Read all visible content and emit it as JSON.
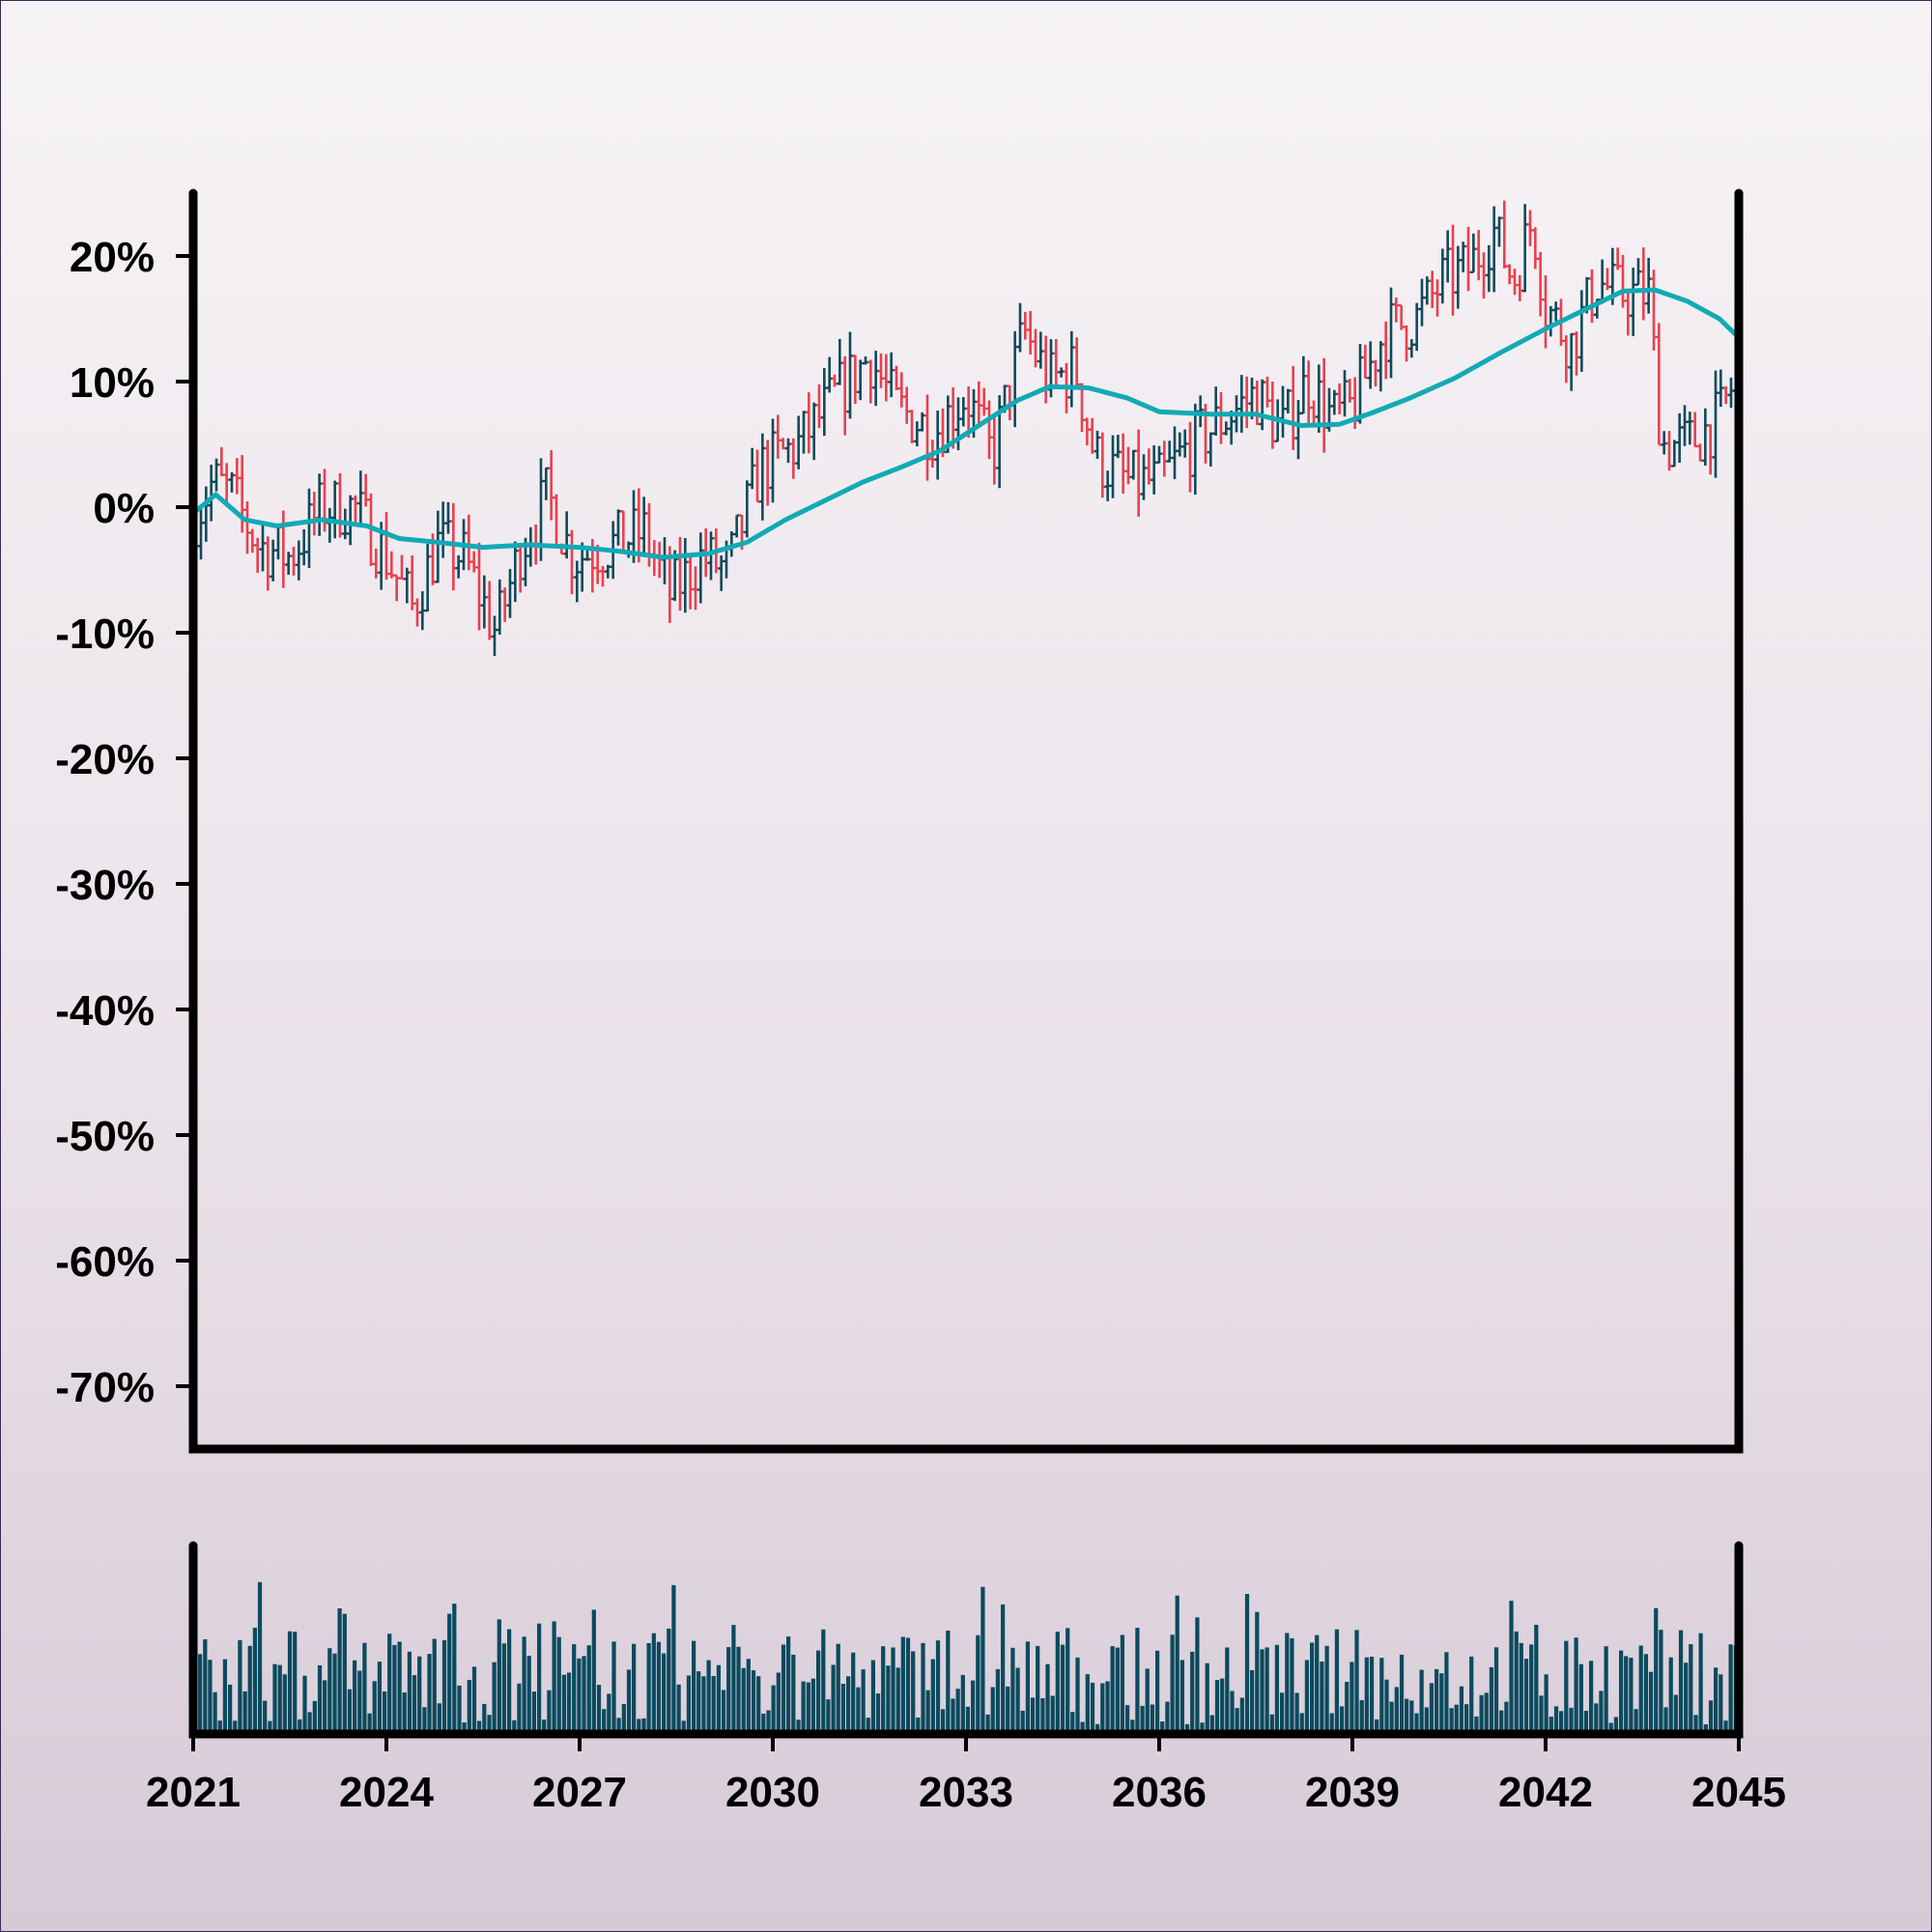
{
  "chart_data": {
    "type": "ohlc",
    "title": "",
    "xlabel": "",
    "ylabel": "",
    "x_range": [
      2021,
      2045
    ],
    "x_ticks": [
      "2021",
      "2024",
      "2027",
      "2030",
      "2033",
      "2036",
      "2039",
      "2042",
      "2045"
    ],
    "y_range": [
      -75,
      25
    ],
    "y_ticks": [
      20,
      10,
      0,
      -10,
      -20,
      -30,
      -40,
      -50,
      -60,
      -70
    ],
    "y_tick_labels": [
      "20%",
      "10%",
      "0%",
      "-10%",
      "-20%",
      "-30%",
      "-40%",
      "-50%",
      "-60%",
      "-70%"
    ],
    "grid": false,
    "legend": "none",
    "colors": {
      "up": "#0f4a5c",
      "down": "#e8404f",
      "moving_average": "#12aab5",
      "volume": "#0b4a5e",
      "axis": "#000000"
    },
    "price_anchors": [
      [
        2021.0,
        -1
      ],
      [
        2021.3,
        2
      ],
      [
        2021.6,
        1
      ],
      [
        2022.0,
        -3
      ],
      [
        2022.5,
        -4
      ],
      [
        2023.0,
        0
      ],
      [
        2023.5,
        0
      ],
      [
        2024.0,
        -4
      ],
      [
        2024.4,
        -8
      ],
      [
        2024.8,
        -3
      ],
      [
        2025.2,
        -4
      ],
      [
        2025.7,
        -10
      ],
      [
        2026.1,
        -3
      ],
      [
        2026.5,
        1
      ],
      [
        2026.9,
        -4
      ],
      [
        2027.5,
        -3
      ],
      [
        2028.0,
        -2
      ],
      [
        2028.4,
        -7
      ],
      [
        2028.9,
        -4
      ],
      [
        2029.3,
        -5
      ],
      [
        2029.8,
        3
      ],
      [
        2030.4,
        5
      ],
      [
        2031.0,
        9
      ],
      [
        2031.5,
        12
      ],
      [
        2031.9,
        8
      ],
      [
        2032.5,
        6
      ],
      [
        2033.0,
        9
      ],
      [
        2033.4,
        4
      ],
      [
        2033.9,
        14
      ],
      [
        2034.3,
        10
      ],
      [
        2034.7,
        11
      ],
      [
        2035.0,
        4
      ],
      [
        2035.5,
        2
      ],
      [
        2036.0,
        2
      ],
      [
        2036.5,
        5
      ],
      [
        2037.0,
        7
      ],
      [
        2037.5,
        9
      ],
      [
        2037.9,
        6
      ],
      [
        2038.3,
        10
      ],
      [
        2038.7,
        7
      ],
      [
        2039.0,
        8
      ],
      [
        2039.5,
        14
      ],
      [
        2040.0,
        15
      ],
      [
        2040.4,
        18
      ],
      [
        2040.8,
        19
      ],
      [
        2041.2,
        22
      ],
      [
        2041.5,
        18
      ],
      [
        2041.8,
        23
      ],
      [
        2042.0,
        16
      ],
      [
        2042.4,
        13
      ],
      [
        2042.8,
        18
      ],
      [
        2043.1,
        17
      ],
      [
        2043.6,
        17
      ],
      [
        2043.8,
        5
      ],
      [
        2044.2,
        5
      ],
      [
        2044.7,
        7
      ],
      [
        2045.0,
        11
      ]
    ],
    "moving_average": [
      [
        2021.0,
        -0.5
      ],
      [
        2021.35,
        1
      ],
      [
        2021.8,
        -1
      ],
      [
        2022.3,
        -1.5
      ],
      [
        2023.0,
        -1
      ],
      [
        2023.7,
        -1.5
      ],
      [
        2024.2,
        -2.5
      ],
      [
        2024.8,
        -2.8
      ],
      [
        2025.5,
        -3.2
      ],
      [
        2026.2,
        -3
      ],
      [
        2027.0,
        -3.2
      ],
      [
        2027.6,
        -3.5
      ],
      [
        2028.3,
        -4
      ],
      [
        2029.0,
        -3.7
      ],
      [
        2029.6,
        -2.8
      ],
      [
        2030.2,
        -1
      ],
      [
        2030.8,
        0.5
      ],
      [
        2031.4,
        2
      ],
      [
        2032.0,
        3.2
      ],
      [
        2032.6,
        4.5
      ],
      [
        2033.2,
        6.5
      ],
      [
        2033.8,
        8.5
      ],
      [
        2034.3,
        9.6
      ],
      [
        2034.9,
        9.5
      ],
      [
        2035.5,
        8.7
      ],
      [
        2036.0,
        7.6
      ],
      [
        2036.8,
        7.4
      ],
      [
        2037.5,
        7.4
      ],
      [
        2038.2,
        6.5
      ],
      [
        2038.8,
        6.6
      ],
      [
        2039.3,
        7.5
      ],
      [
        2039.9,
        8.7
      ],
      [
        2040.6,
        10.3
      ],
      [
        2041.3,
        12.3
      ],
      [
        2042.0,
        14.2
      ],
      [
        2042.6,
        15.7
      ],
      [
        2043.2,
        17.2
      ],
      [
        2043.7,
        17.3
      ],
      [
        2044.2,
        16.4
      ],
      [
        2044.7,
        15
      ],
      [
        2045.0,
        13.5
      ]
    ]
  }
}
